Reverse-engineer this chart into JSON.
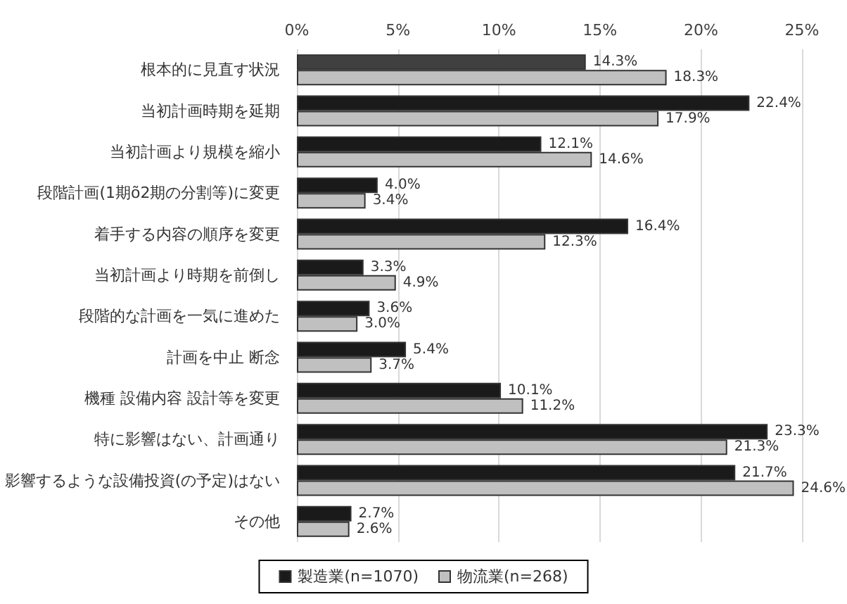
{
  "chart_data": {
    "type": "bar",
    "orientation": "horizontal",
    "categories": [
      "根本的に見直す状況",
      "当初計画時期を延期",
      "当初計画より規模を縮小",
      "段階計画(1期õ2期の分割等)に変更",
      "着手する内容の順序を変更",
      "当初計画より時期を前倒し",
      "段階的な計画を一気に進めた",
      "計画を中止 断念",
      "機種 設備内容 設計等を変更",
      "特に影響はない、計画通り",
      "影響するような設備投資(の予定)はない",
      "その他"
    ],
    "series": [
      {
        "name": "製造業(n=1070)",
        "color": "#1a1a1a",
        "colors": [
          "#404040",
          "#1a1a1a",
          "#1a1a1a",
          "#1a1a1a",
          "#1a1a1a",
          "#1a1a1a",
          "#1a1a1a",
          "#1a1a1a",
          "#1a1a1a",
          "#1a1a1a",
          "#1a1a1a",
          "#1a1a1a"
        ],
        "values": [
          14.3,
          22.4,
          12.1,
          4.0,
          16.4,
          3.3,
          3.6,
          5.4,
          10.1,
          23.3,
          21.7,
          2.7
        ],
        "value_labels": [
          "14.3%",
          "22.4%",
          "12.1%",
          "4.0%",
          "16.4%",
          "3.3%",
          "3.6%",
          "5.4%",
          "10.1%",
          "23.3%",
          "21.7%",
          "2.7%"
        ]
      },
      {
        "name": "物流業(n=268)",
        "color": "#c0c0c0",
        "values": [
          18.3,
          17.9,
          14.6,
          3.4,
          12.3,
          4.9,
          3.0,
          3.7,
          11.2,
          21.3,
          24.6,
          2.6
        ],
        "value_labels": [
          "18.3%",
          "17.9%",
          "14.6%",
          "3.4%",
          "12.3%",
          "4.9%",
          "3.0%",
          "3.7%",
          "11.2%",
          "21.3%",
          "24.6%",
          "2.6%"
        ]
      }
    ],
    "xlim": [
      0,
      25
    ],
    "xticks": [
      {
        "value": 0,
        "label": "0%"
      },
      {
        "value": 5,
        "label": "5%"
      },
      {
        "value": 10,
        "label": "10%"
      },
      {
        "value": 15,
        "label": "15%"
      },
      {
        "value": 20,
        "label": "20%"
      },
      {
        "value": 25,
        "label": "25%"
      }
    ],
    "grid": "x",
    "legend": "bottom"
  }
}
